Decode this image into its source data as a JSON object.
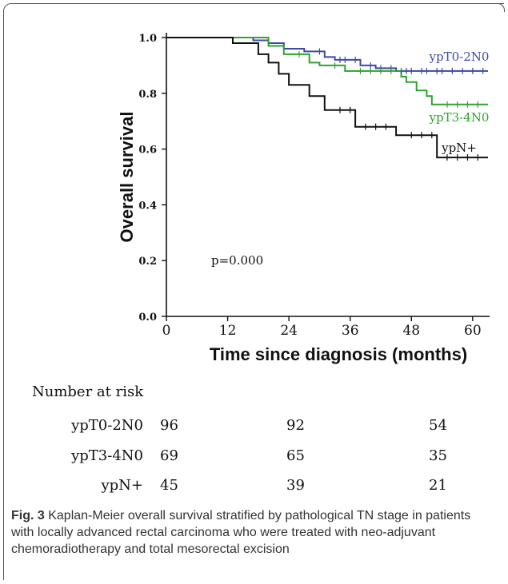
{
  "chart_data": {
    "type": "line",
    "step": true,
    "xlabel": "Time since diagnosis (months)",
    "ylabel": "Overall survival",
    "x_ticks": [
      0,
      12,
      24,
      36,
      48,
      60
    ],
    "y_ticks": [
      "0.0",
      "0.2",
      "0.4",
      "0.6",
      "0.8",
      "1.0"
    ],
    "xlim": [
      0,
      63
    ],
    "ylim": [
      0,
      1.0
    ],
    "annotation": "p=0.000",
    "series": [
      {
        "name": "ypT0-2N0",
        "color": "#3c49a8",
        "points": [
          [
            0,
            1.0
          ],
          [
            17,
            1.0
          ],
          [
            17,
            0.99
          ],
          [
            20,
            0.99
          ],
          [
            20,
            0.98
          ],
          [
            23,
            0.98
          ],
          [
            23,
            0.96
          ],
          [
            27,
            0.96
          ],
          [
            27,
            0.95
          ],
          [
            31,
            0.95
          ],
          [
            31,
            0.93
          ],
          [
            33,
            0.93
          ],
          [
            33,
            0.92
          ],
          [
            38,
            0.92
          ],
          [
            38,
            0.9
          ],
          [
            41,
            0.9
          ],
          [
            41,
            0.89
          ],
          [
            45,
            0.89
          ],
          [
            45,
            0.88
          ],
          [
            63,
            0.88
          ]
        ],
        "censor_x": [
          30,
          34,
          35,
          37,
          40,
          42,
          44,
          46,
          47,
          48,
          50,
          51,
          53,
          54,
          56,
          58,
          60,
          62
        ]
      },
      {
        "name": "ypT3-4N0",
        "color": "#2fa32f",
        "points": [
          [
            0,
            1.0
          ],
          [
            20,
            1.0
          ],
          [
            20,
            0.97
          ],
          [
            23,
            0.97
          ],
          [
            23,
            0.94
          ],
          [
            28,
            0.94
          ],
          [
            28,
            0.91
          ],
          [
            30,
            0.91
          ],
          [
            30,
            0.9
          ],
          [
            35,
            0.9
          ],
          [
            35,
            0.88
          ],
          [
            46,
            0.88
          ],
          [
            46,
            0.86
          ],
          [
            47,
            0.86
          ],
          [
            47,
            0.84
          ],
          [
            49,
            0.84
          ],
          [
            49,
            0.81
          ],
          [
            51,
            0.81
          ],
          [
            51,
            0.79
          ],
          [
            52,
            0.79
          ],
          [
            52,
            0.76
          ],
          [
            63,
            0.76
          ]
        ],
        "censor_x": [
          26,
          33,
          38,
          40,
          42,
          44,
          55,
          57,
          59,
          61
        ]
      },
      {
        "name": "ypN+",
        "color": "#111111",
        "points": [
          [
            0,
            1.0
          ],
          [
            13,
            1.0
          ],
          [
            13,
            0.98
          ],
          [
            18,
            0.98
          ],
          [
            18,
            0.94
          ],
          [
            20,
            0.94
          ],
          [
            20,
            0.91
          ],
          [
            22,
            0.91
          ],
          [
            22,
            0.87
          ],
          [
            24,
            0.87
          ],
          [
            24,
            0.83
          ],
          [
            28,
            0.83
          ],
          [
            28,
            0.79
          ],
          [
            31,
            0.79
          ],
          [
            31,
            0.74
          ],
          [
            37,
            0.74
          ],
          [
            37,
            0.68
          ],
          [
            45,
            0.68
          ],
          [
            45,
            0.65
          ],
          [
            53,
            0.65
          ],
          [
            53,
            0.57
          ],
          [
            63,
            0.57
          ]
        ],
        "censor_x": [
          34,
          36,
          39,
          41,
          43,
          48,
          50,
          52,
          55,
          57,
          59,
          61
        ]
      }
    ]
  },
  "risk_table": {
    "title": "Number at risk",
    "rows": [
      {
        "label": "ypT0-2N0",
        "values": [
          "96",
          "92",
          "54"
        ]
      },
      {
        "label": "ypT3-4N0",
        "values": [
          "69",
          "65",
          "35"
        ]
      },
      {
        "label": "ypN+",
        "values": [
          "45",
          "39",
          "21"
        ]
      }
    ]
  },
  "caption": {
    "label": "Fig. 3",
    "text": " Kaplan-Meier overall survival stratified by pathological TN stage in patients with locally advanced rectal carcinoma who were treated with neo-adjuvant chemoradiotherapy and total mesorectal excision"
  }
}
